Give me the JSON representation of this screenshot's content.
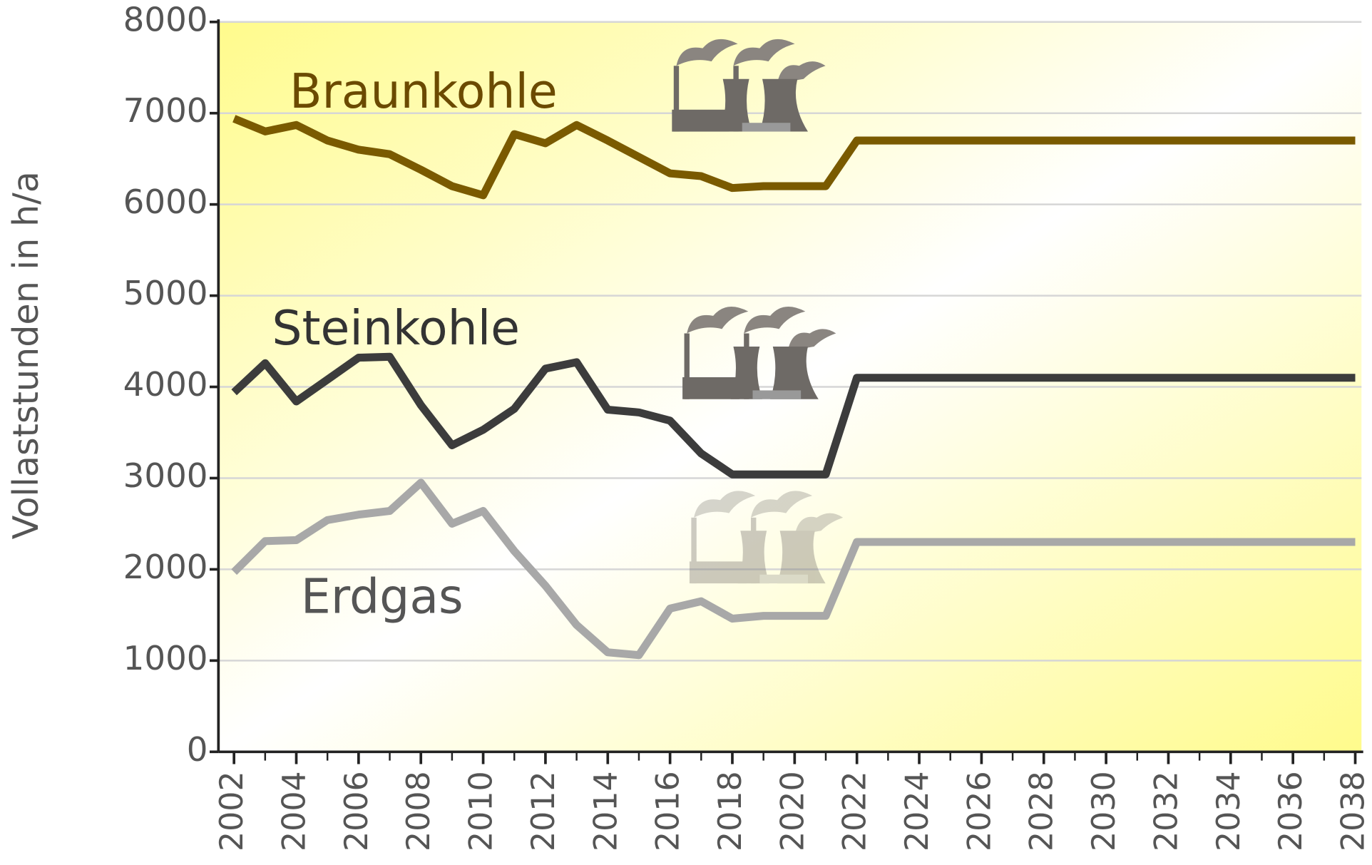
{
  "chart_data": {
    "type": "line",
    "y_label": "Vollaststunden in h/a",
    "x": [
      2002,
      2003,
      2004,
      2005,
      2006,
      2007,
      2008,
      2009,
      2010,
      2011,
      2012,
      2013,
      2014,
      2015,
      2016,
      2017,
      2018,
      2019,
      2020,
      2021,
      2022,
      2023,
      2024,
      2025,
      2026,
      2027,
      2028,
      2029,
      2030,
      2031,
      2032,
      2033,
      2034,
      2035,
      2036,
      2037,
      2038
    ],
    "series": [
      {
        "name": "Braunkohle",
        "color": "#7a5a00",
        "values": [
          6940,
          6800,
          6870,
          6700,
          6600,
          6550,
          6380,
          6200,
          6100,
          6770,
          6670,
          6870,
          6700,
          6520,
          6340,
          6310,
          6180,
          6200,
          6200,
          6200,
          6700,
          6700,
          6700,
          6700,
          6700,
          6700,
          6700,
          6700,
          6700,
          6700,
          6700,
          6700,
          6700,
          6700,
          6700,
          6700,
          6700
        ]
      },
      {
        "name": "Steinkohle",
        "color": "#3c3c3c",
        "values": [
          3940,
          4260,
          3840,
          4080,
          4320,
          4330,
          3800,
          3360,
          3530,
          3760,
          4200,
          4270,
          3750,
          3720,
          3630,
          3270,
          3040,
          3040,
          3040,
          3040,
          4100,
          4100,
          4100,
          4100,
          4100,
          4100,
          4100,
          4100,
          4100,
          4100,
          4100,
          4100,
          4100,
          4100,
          4100,
          4100,
          4100
        ]
      },
      {
        "name": "Erdgas",
        "color": "#a8a8a8",
        "values": [
          1970,
          2310,
          2320,
          2540,
          2600,
          2640,
          2950,
          2500,
          2640,
          2200,
          1820,
          1390,
          1090,
          1060,
          1570,
          1650,
          1460,
          1490,
          1490,
          1490,
          2300,
          2300,
          2300,
          2300,
          2300,
          2300,
          2300,
          2300,
          2300,
          2300,
          2300,
          2300,
          2300,
          2300,
          2300,
          2300,
          2300
        ]
      }
    ],
    "xlim": [
      2001.5,
      2038.2
    ],
    "xticks": [
      2002,
      2004,
      2006,
      2008,
      2010,
      2012,
      2014,
      2016,
      2018,
      2020,
      2022,
      2024,
      2026,
      2028,
      2030,
      2032,
      2034,
      2036,
      2038
    ],
    "ylim": [
      0,
      8000
    ],
    "yticks": [
      0,
      1000,
      2000,
      3000,
      4000,
      5000,
      6000,
      7000,
      8000
    ],
    "grid": true
  }
}
